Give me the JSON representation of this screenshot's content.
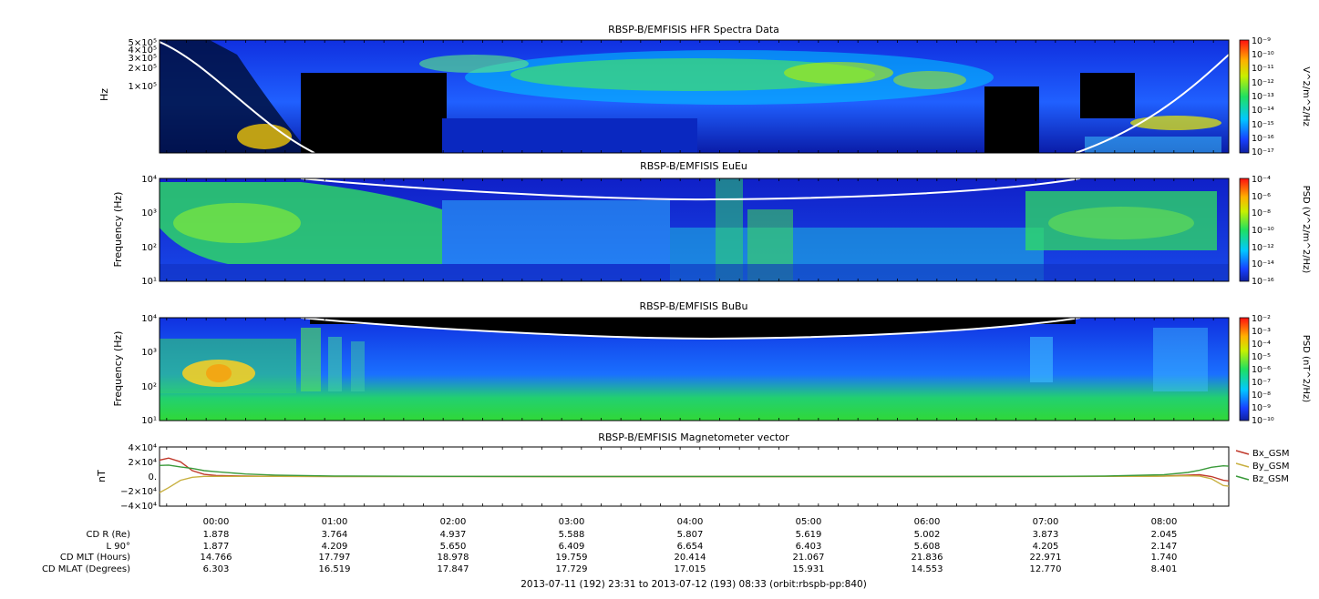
{
  "chart_data": [
    {
      "type": "heatmap",
      "title": "RBSP-B/EMFISIS  HFR Spectra Data",
      "ylabel": "Hz",
      "yscale": "log",
      "ylim": [
        10000,
        500000
      ],
      "y_ticks": [
        "5×10⁵",
        "4×10⁵",
        "3×10⁵",
        "2×10⁵",
        "1×10⁵"
      ],
      "colorbar": {
        "label": "V^2/m^2/Hz",
        "scale": "log",
        "range": [
          1e-17,
          1e-09
        ],
        "ticks": [
          "10⁻⁹",
          "10⁻¹⁰",
          "10⁻¹¹",
          "10⁻¹²",
          "10⁻¹³",
          "10⁻¹⁴",
          "10⁻¹⁵",
          "10⁻¹⁶",
          "10⁻¹⁷"
        ]
      }
    },
    {
      "type": "heatmap",
      "title": "RBSP-B/EMFISIS  EuEu",
      "ylabel": "Frequency (Hz)",
      "yscale": "log",
      "ylim": [
        10,
        10000
      ],
      "y_ticks": [
        "10⁴",
        "10³",
        "10²",
        "10¹"
      ],
      "colorbar": {
        "label": "PSD (V^2/m^2/Hz)",
        "scale": "log",
        "range": [
          1e-16,
          0.0001
        ],
        "ticks": [
          "10⁻⁴",
          "10⁻⁶",
          "10⁻⁸",
          "10⁻¹⁰",
          "10⁻¹²",
          "10⁻¹⁴",
          "10⁻¹⁶"
        ]
      }
    },
    {
      "type": "heatmap",
      "title": "RBSP-B/EMFISIS  BuBu",
      "ylabel": "Frequency (Hz)",
      "yscale": "log",
      "ylim": [
        10,
        10000
      ],
      "y_ticks": [
        "10⁴",
        "10³",
        "10²",
        "10¹"
      ],
      "colorbar": {
        "label": "PSD (nT^2/Hz)",
        "scale": "log",
        "range": [
          1e-10,
          0.01
        ],
        "ticks": [
          "10⁻²",
          "10⁻³",
          "10⁻⁴",
          "10⁻⁵",
          "10⁻⁶",
          "10⁻⁷",
          "10⁻⁸",
          "10⁻⁹",
          "10⁻¹⁰"
        ]
      }
    },
    {
      "type": "line",
      "title": "RBSP-B/EMFISIS  Magnetometer vector",
      "ylabel": "nT",
      "ylim": [
        -40000,
        40000
      ],
      "y_ticks": [
        "4×10⁴",
        "2×10⁴",
        "0.",
        "−2×10⁴",
        "−4×10⁴"
      ],
      "x": [
        -0.48,
        -0.4,
        -0.3,
        -0.2,
        -0.1,
        0.0,
        0.25,
        0.5,
        1.0,
        2.0,
        3.0,
        4.0,
        5.0,
        6.0,
        7.0,
        7.5,
        8.0,
        8.2,
        8.3,
        8.4,
        8.5,
        8.55
      ],
      "series": [
        {
          "name": "Bx_GSM",
          "color": "#c0392b",
          "values": [
            22000,
            25000,
            20000,
            8000,
            3000,
            1500,
            600,
            300,
            150,
            80,
            60,
            50,
            50,
            60,
            100,
            200,
            700,
            2000,
            2500,
            0,
            -5000,
            -6000
          ]
        },
        {
          "name": "By_GSM",
          "color": "#c8b040",
          "values": [
            -22000,
            -15000,
            -5000,
            -1000,
            200,
            300,
            300,
            250,
            150,
            80,
            60,
            50,
            50,
            60,
            100,
            200,
            500,
            1000,
            800,
            -3000,
            -12000,
            -13000
          ]
        },
        {
          "name": "Bz_GSM",
          "color": "#3a9a3a",
          "values": [
            15000,
            15500,
            13000,
            11000,
            8000,
            6500,
            3500,
            2000,
            800,
            250,
            120,
            80,
            80,
            120,
            300,
            700,
            2500,
            5500,
            8500,
            12500,
            14500,
            14000
          ]
        }
      ]
    }
  ],
  "time_ticks": [
    "00:00",
    "01:00",
    "02:00",
    "03:00",
    "04:00",
    "05:00",
    "06:00",
    "07:00",
    "08:00"
  ],
  "ephemeris": {
    "labels": [
      "CD R (Re)",
      "L 90°",
      "CD MLT (Hours)",
      "CD MLAT (Degrees)"
    ],
    "rows": [
      [
        "1.878",
        "3.764",
        "4.937",
        "5.588",
        "5.807",
        "5.619",
        "5.002",
        "3.873",
        "2.045"
      ],
      [
        "1.877",
        "4.209",
        "5.650",
        "6.409",
        "6.654",
        "6.403",
        "5.608",
        "4.205",
        "2.147"
      ],
      [
        "14.766",
        "17.797",
        "18.978",
        "19.759",
        "20.414",
        "21.067",
        "21.836",
        "22.971",
        "1.740"
      ],
      [
        "6.303",
        "16.519",
        "17.847",
        "17.729",
        "17.015",
        "15.931",
        "14.553",
        "12.770",
        "8.401"
      ]
    ]
  },
  "footer": "2013-07-11 (192) 23:31 to 2013-07-12 (193) 08:33 (orbit:rbspb-pp:840)"
}
